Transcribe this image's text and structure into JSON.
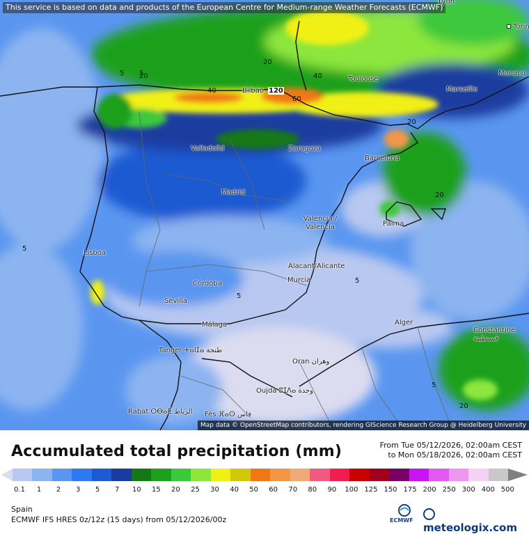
{
  "banner": "This service is based on data and products of the European Centre for Medium-range Weather Forecasts (ECMWF)",
  "attribution": "Map data © OpenStreetMap contributors, rendering GIScience Research Group @ Heidelberg University",
  "cities": [
    {
      "id": "lyon",
      "name": "Lyon"
    },
    {
      "id": "torino",
      "name": "Torino"
    },
    {
      "id": "monaco",
      "name": "Monaco"
    },
    {
      "id": "marseille",
      "name": "Marseille"
    },
    {
      "id": "toulouse",
      "name": "Toulouse"
    },
    {
      "id": "bilbao",
      "name": "Bilbao"
    },
    {
      "id": "valladolid",
      "name": "Valladolid"
    },
    {
      "id": "zaragoza",
      "name": "Zaragoza"
    },
    {
      "id": "barcelona",
      "name": "Barcelona"
    },
    {
      "id": "madrid",
      "name": "Madrid"
    },
    {
      "id": "valencia",
      "name": "Valencia / València"
    },
    {
      "id": "palma",
      "name": "Palma"
    },
    {
      "id": "lisboa",
      "name": "Lisboa"
    },
    {
      "id": "alacant",
      "name": "Alacant/Alicante"
    },
    {
      "id": "murcia",
      "name": "Murcia"
    },
    {
      "id": "cordoba",
      "name": "Córdoba"
    },
    {
      "id": "sevilla",
      "name": "Sevilla"
    },
    {
      "id": "malaga",
      "name": "Málaga"
    },
    {
      "id": "alger",
      "name": "Alger"
    },
    {
      "id": "constantine",
      "name": "Constantine قسنطينة"
    },
    {
      "id": "tanger",
      "name": "Tanger ⵜⴰⵏⵊⴰ طنجة"
    },
    {
      "id": "oran",
      "name": "Oran وهران"
    },
    {
      "id": "oujda",
      "name": "Oujda ⵓⵊⴷⴰ وجدة"
    },
    {
      "id": "rabat",
      "name": "Rabat ⵔⴱⴰⵟ الرباط"
    },
    {
      "id": "fes",
      "name": "Fès ⴼⴰⵙ فاس"
    }
  ],
  "contour_labels": [
    "5",
    "20",
    "40",
    "60",
    "120"
  ],
  "legend": {
    "title": "Accumulated total precipitation (mm)",
    "period_from": "From Tue 05/12/2026, 02:00am CEST",
    "period_to": "to Mon 05/18/2026, 02:00am CEST",
    "ticks": [
      "0.1",
      "1",
      "2",
      "3",
      "5",
      "7",
      "10",
      "15",
      "20",
      "25",
      "30",
      "40",
      "50",
      "60",
      "70",
      "80",
      "90",
      "100",
      "125",
      "150",
      "175",
      "200",
      "250",
      "300",
      "400",
      "500"
    ],
    "colors": [
      "#dcdcf0",
      "#b8c8f0",
      "#8cb4f0",
      "#5a96f0",
      "#2e78f0",
      "#1e5ad2",
      "#1a3ca0",
      "#147814",
      "#1ea01e",
      "#3cc83c",
      "#8ce63c",
      "#f0f014",
      "#d2c80a",
      "#f07814",
      "#f09646",
      "#f0aa78",
      "#f05a82",
      "#f01e50",
      "#c80000",
      "#a0001e",
      "#780064",
      "#c814f0",
      "#e15af0",
      "#eb96f0",
      "#f5d2f5",
      "#c8c8c8",
      "#808080"
    ]
  },
  "footer": {
    "region": "Spain",
    "model": "ECMWF IFS HRES 0z/12z (15 days) from 05/12/2026/00z",
    "ecmwf_logo_text": "ECMWF",
    "brand": "meteologix.com"
  }
}
